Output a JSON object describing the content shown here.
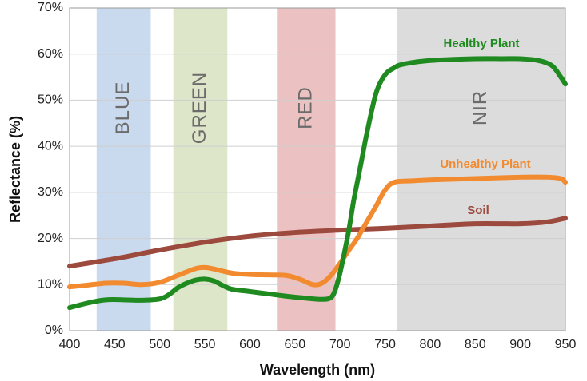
{
  "chart_data": {
    "type": "line",
    "title": "",
    "xlabel": "Wavelength (nm)",
    "ylabel": "Reflectance (%)",
    "xlim": [
      400,
      950
    ],
    "ylim": [
      0,
      70
    ],
    "x_ticks": [
      "400",
      "450",
      "500",
      "550",
      "600",
      "650",
      "700",
      "750",
      "800",
      "850",
      "900",
      "950"
    ],
    "y_ticks": [
      "0%",
      "10%",
      "20%",
      "30%",
      "40%",
      "50%",
      "60%",
      "70%"
    ],
    "grid": true,
    "bands": [
      {
        "label": "BLUE",
        "start": 430,
        "end": 490,
        "color": "#c9d9ee"
      },
      {
        "label": "GREEN",
        "start": 515,
        "end": 575,
        "color": "#dde6c9"
      },
      {
        "label": "RED",
        "start": 630,
        "end": 695,
        "color": "#ebc1c1"
      },
      {
        "label": "NIR",
        "start": 763,
        "end": 950,
        "color": "#dcdcdc"
      }
    ],
    "series": [
      {
        "name": "Soil",
        "color": "#9c4a3e",
        "x": [
          400,
          450,
          500,
          550,
          600,
          650,
          700,
          750,
          800,
          850,
          900,
          930,
          950
        ],
        "y": [
          14,
          15.6,
          17.5,
          19.2,
          20.5,
          21.3,
          21.8,
          22.2,
          22.7,
          23.2,
          23.2,
          23.6,
          24.4
        ]
      },
      {
        "name": "Unhealthy Plant",
        "color": "#f28a30",
        "x": [
          400,
          420,
          440,
          460,
          480,
          500,
          520,
          540,
          550,
          560,
          580,
          600,
          620,
          640,
          655,
          670,
          680,
          690,
          700,
          710,
          720,
          730,
          740,
          750,
          760,
          780,
          800,
          850,
          900,
          930,
          945,
          950
        ],
        "y": [
          9.5,
          9.9,
          10.3,
          10.3,
          10,
          10.5,
          12,
          13.5,
          13.7,
          13.4,
          12.5,
          12.2,
          12.1,
          12,
          11.2,
          10,
          10.3,
          12,
          14.6,
          17.5,
          20.3,
          23.7,
          27,
          30.5,
          32.2,
          32.5,
          32.7,
          33,
          33.3,
          33.3,
          33,
          32.2
        ]
      },
      {
        "name": "Healthy Plant",
        "color": "#1f8a1f",
        "x": [
          400,
          420,
          440,
          460,
          480,
          500,
          510,
          520,
          530,
          540,
          550,
          560,
          570,
          580,
          600,
          620,
          640,
          660,
          680,
          690,
          695,
          700,
          705,
          710,
          715,
          720,
          725,
          730,
          740,
          750,
          760,
          770,
          800,
          850,
          880,
          900,
          920,
          935,
          945,
          950
        ],
        "y": [
          5,
          6,
          6.7,
          6.7,
          6.6,
          6.9,
          7.8,
          9.3,
          10.3,
          11,
          11.2,
          10.8,
          9.8,
          9,
          8.5,
          8,
          7.5,
          7.1,
          6.8,
          7.2,
          9,
          12.5,
          17,
          22,
          28,
          33,
          38,
          43,
          51.5,
          55.5,
          57,
          57.8,
          58.6,
          59,
          59,
          59,
          58.6,
          57.5,
          55,
          53.5
        ]
      }
    ]
  }
}
